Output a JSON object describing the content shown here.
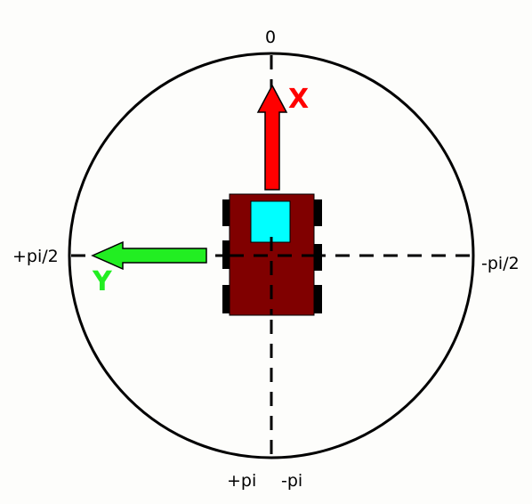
{
  "angles": {
    "top": "0",
    "left": "+pi/2",
    "right": "-pi/2",
    "bottom_left": "+pi",
    "bottom_right": "-pi"
  },
  "axes": {
    "x": {
      "label": "X",
      "color": "#ff0000"
    },
    "y": {
      "label": "Y",
      "color": "#22ee22"
    }
  },
  "robot": {
    "body_color": "#800000",
    "sensor_color": "#00ffff",
    "wheel_color": "#000000"
  }
}
